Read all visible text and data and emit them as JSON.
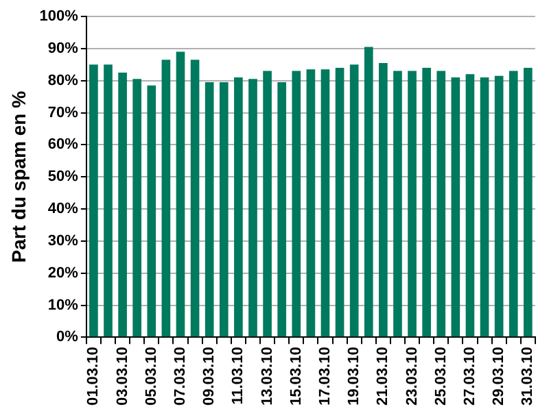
{
  "chart_data": {
    "type": "bar",
    "ylabel": "Part du spam en %",
    "categories": [
      "01.03.10",
      null,
      "03.03.10",
      null,
      "05.03.10",
      null,
      "07.03.10",
      null,
      "09.03.10",
      null,
      "11.03.10",
      null,
      "13.03.10",
      null,
      "15.03.10",
      null,
      "17.03.10",
      null,
      "19.03.10",
      null,
      "21.03.10",
      null,
      "23.03.10",
      null,
      "25.03.10",
      null,
      "27.03.10",
      null,
      "29.03.10",
      null,
      "31.03.10"
    ],
    "values": [
      85,
      85,
      82.5,
      80.5,
      78.5,
      86.5,
      89,
      86.5,
      79.5,
      79.5,
      81,
      80.5,
      83,
      79.5,
      83,
      83.5,
      83.5,
      84,
      85,
      90.5,
      85.5,
      83,
      83,
      84,
      83,
      81,
      82,
      81,
      81.5,
      83,
      84
    ],
    "color": "#007a5e",
    "ylim": [
      0,
      100
    ],
    "yticks": [
      {
        "value": 0,
        "label": "0%"
      },
      {
        "value": 10,
        "label": "10%"
      },
      {
        "value": 20,
        "label": "20%"
      },
      {
        "value": 30,
        "label": "30%"
      },
      {
        "value": 40,
        "label": "40%"
      },
      {
        "value": 50,
        "label": "50%"
      },
      {
        "value": 60,
        "label": "60%"
      },
      {
        "value": 70,
        "label": "70%"
      },
      {
        "value": 80,
        "label": "80%"
      },
      {
        "value": 90,
        "label": "90%"
      },
      {
        "value": 100,
        "label": "100%"
      }
    ],
    "grid": "y"
  }
}
